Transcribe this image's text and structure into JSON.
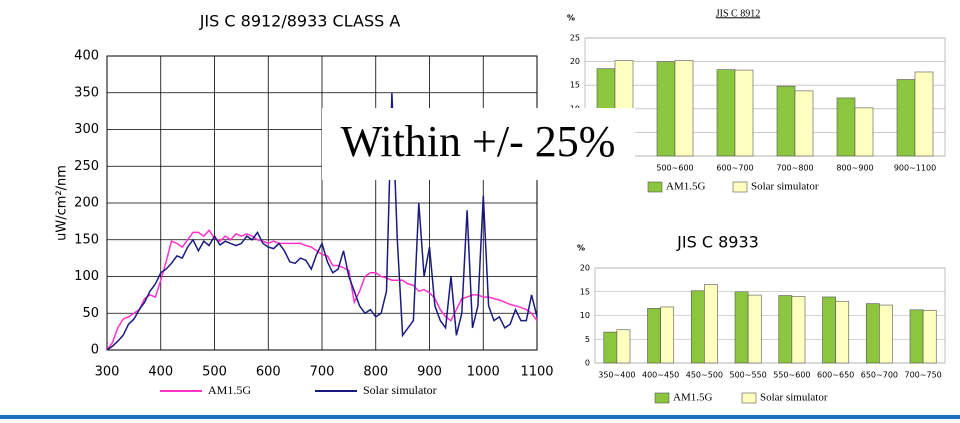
{
  "chart_data": [
    {
      "type": "line",
      "title": "JIS C 8912/8933      CLASS A",
      "y_label": "uW/cm²/nm",
      "annotation": "Within +/- 25%",
      "x": [
        300,
        310,
        320,
        330,
        340,
        350,
        360,
        370,
        380,
        390,
        400,
        410,
        420,
        430,
        440,
        450,
        460,
        470,
        480,
        490,
        500,
        510,
        520,
        530,
        540,
        550,
        560,
        570,
        580,
        590,
        600,
        610,
        620,
        630,
        640,
        650,
        660,
        670,
        680,
        690,
        700,
        710,
        720,
        730,
        740,
        750,
        760,
        770,
        780,
        790,
        800,
        810,
        820,
        830,
        840,
        850,
        860,
        870,
        880,
        890,
        900,
        910,
        920,
        930,
        940,
        950,
        960,
        970,
        980,
        990,
        1000,
        1010,
        1020,
        1030,
        1040,
        1050,
        1060,
        1070,
        1080,
        1090,
        1100
      ],
      "xlim": [
        300,
        1100
      ],
      "xticks": [
        300,
        400,
        500,
        600,
        700,
        800,
        900,
        1000,
        1100
      ],
      "ylim": [
        0,
        400
      ],
      "yticks": [
        0,
        50,
        100,
        150,
        200,
        250,
        300,
        350,
        400
      ],
      "grid": true,
      "series": [
        {
          "name": "AM1.5G",
          "color": "#ff33cc",
          "values": [
            0,
            10,
            30,
            42,
            45,
            50,
            55,
            70,
            75,
            72,
            95,
            120,
            148,
            145,
            140,
            150,
            160,
            160,
            155,
            163,
            152,
            148,
            155,
            150,
            158,
            155,
            158,
            155,
            150,
            148,
            145,
            148,
            145,
            145,
            145,
            145,
            145,
            142,
            140,
            135,
            130,
            128,
            115,
            115,
            112,
            108,
            65,
            80,
            100,
            105,
            105,
            100,
            98,
            95,
            95,
            95,
            90,
            88,
            80,
            82,
            78,
            70,
            55,
            45,
            40,
            55,
            70,
            72,
            75,
            75,
            72,
            72,
            70,
            68,
            65,
            62,
            60,
            58,
            55,
            50,
            40
          ]
        },
        {
          "name": "Solar simulator",
          "color": "#1a1a80",
          "values": [
            0,
            5,
            12,
            20,
            35,
            42,
            55,
            65,
            80,
            90,
            105,
            110,
            118,
            128,
            125,
            140,
            150,
            135,
            148,
            142,
            155,
            143,
            148,
            145,
            142,
            145,
            155,
            150,
            160,
            145,
            140,
            138,
            145,
            135,
            120,
            118,
            125,
            122,
            110,
            130,
            145,
            120,
            105,
            110,
            135,
            100,
            80,
            60,
            50,
            55,
            45,
            50,
            80,
            350,
            150,
            20,
            30,
            40,
            200,
            100,
            140,
            60,
            40,
            30,
            100,
            20,
            50,
            190,
            30,
            60,
            210,
            60,
            40,
            45,
            30,
            35,
            55,
            40,
            40,
            75,
            45
          ]
        }
      ]
    },
    {
      "type": "bar",
      "title": "JIS C 8912",
      "y_label": "%",
      "categories": [
        null,
        "500~600",
        "600~700",
        "700~800",
        "800~900",
        "900~1100"
      ],
      "ylim": [
        0,
        25
      ],
      "yticks": [
        0,
        5,
        10,
        15,
        20,
        25
      ],
      "grid": true,
      "series": [
        {
          "name": "AM1.5G",
          "color": "#8cc63e",
          "values": [
            18.5,
            20,
            18.3,
            14.8,
            12.3,
            16.2
          ]
        },
        {
          "name": "Solar simulator",
          "color": "#ffffc0",
          "values": [
            20.2,
            20.2,
            18.2,
            13.8,
            10.2,
            17.8
          ]
        }
      ]
    },
    {
      "type": "bar",
      "title": "JIS C 8933",
      "y_label": "%",
      "categories": [
        "350~400",
        "400~450",
        "450~500",
        "500~550",
        "550~600",
        "600~650",
        "650~700",
        "700~750"
      ],
      "ylim": [
        0,
        20
      ],
      "yticks": [
        0,
        5,
        10,
        15,
        20
      ],
      "grid": true,
      "series": [
        {
          "name": "AM1.5G",
          "color": "#8cc63e",
          "values": [
            6.5,
            11.5,
            15.2,
            15,
            14.2,
            13.9,
            12.5,
            11.2
          ]
        },
        {
          "name": "Solar simulator",
          "color": "#ffffc0",
          "values": [
            7,
            11.8,
            16.5,
            14.3,
            14,
            13,
            12.2,
            11.1
          ]
        }
      ]
    }
  ]
}
